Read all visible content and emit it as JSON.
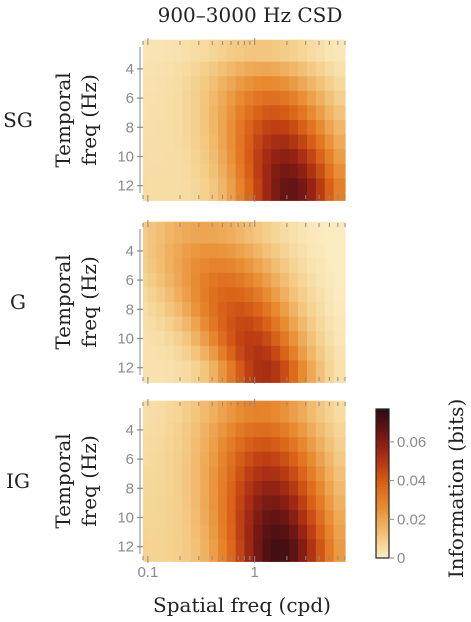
{
  "figure": {
    "title": "900–3000 Hz  CSD"
  },
  "chart_data": {
    "type": "heatmap",
    "title": "900–3000 Hz  CSD",
    "x": {
      "label": "Spatial freq (cpd)",
      "scale": "log",
      "range": [
        0.09,
        7.0
      ],
      "tick_labels": [
        "0.1",
        "1"
      ],
      "tick_values": [
        0.1,
        1
      ],
      "bins": [
        0.09,
        0.11,
        0.13,
        0.16,
        0.19,
        0.23,
        0.28,
        0.34,
        0.41,
        0.5,
        0.6,
        0.73,
        0.88,
        1.07,
        1.3,
        1.57,
        1.9,
        2.3,
        2.8,
        3.4,
        4.1,
        5.0,
        6.0
      ]
    },
    "y": {
      "label": "Temporal freq (Hz)",
      "range": [
        2.5,
        12.5
      ],
      "tick_labels": [
        "4",
        "6",
        "8",
        "10",
        "12"
      ],
      "tick_values": [
        4,
        6,
        8,
        10,
        12
      ],
      "bins": [
        3,
        4,
        5,
        6,
        7,
        8,
        9,
        10,
        11,
        12
      ]
    },
    "colorbar": {
      "label": "Information (bits)",
      "range": [
        0,
        0.077
      ],
      "tick_labels": [
        "0",
        "0.02",
        "0.04",
        "0.06"
      ],
      "tick_values": [
        0,
        0.02,
        0.04,
        0.06
      ],
      "colormap": [
        {
          "v": 0.0,
          "color": "#fbefc8"
        },
        {
          "v": 0.1,
          "color": "#f5d392"
        },
        {
          "v": 0.22,
          "color": "#efb060"
        },
        {
          "v": 0.35,
          "color": "#e88a30"
        },
        {
          "v": 0.5,
          "color": "#d96218"
        },
        {
          "v": 0.62,
          "color": "#bd3e13"
        },
        {
          "v": 0.74,
          "color": "#962314"
        },
        {
          "v": 0.86,
          "color": "#651415"
        },
        {
          "v": 1.0,
          "color": "#2a0d10"
        }
      ]
    },
    "panels": [
      {
        "name": "SG",
        "profile": {
          "base": [
            0.006,
            0.066
          ],
          "center": [
            0.58,
            0.74
          ],
          "width": [
            0.3,
            0.26
          ],
          "left": 0.014
        }
      },
      {
        "name": "G",
        "profile": {
          "base": [
            0.016,
            0.052
          ],
          "center": [
            0.3,
            0.62
          ],
          "width": [
            0.34,
            0.22
          ],
          "left": 0.01
        }
      },
      {
        "name": "IG",
        "profile": {
          "base": [
            0.024,
            0.071
          ],
          "center": [
            0.58,
            0.68
          ],
          "width": [
            0.3,
            0.27
          ],
          "left": 0.02
        }
      }
    ]
  }
}
